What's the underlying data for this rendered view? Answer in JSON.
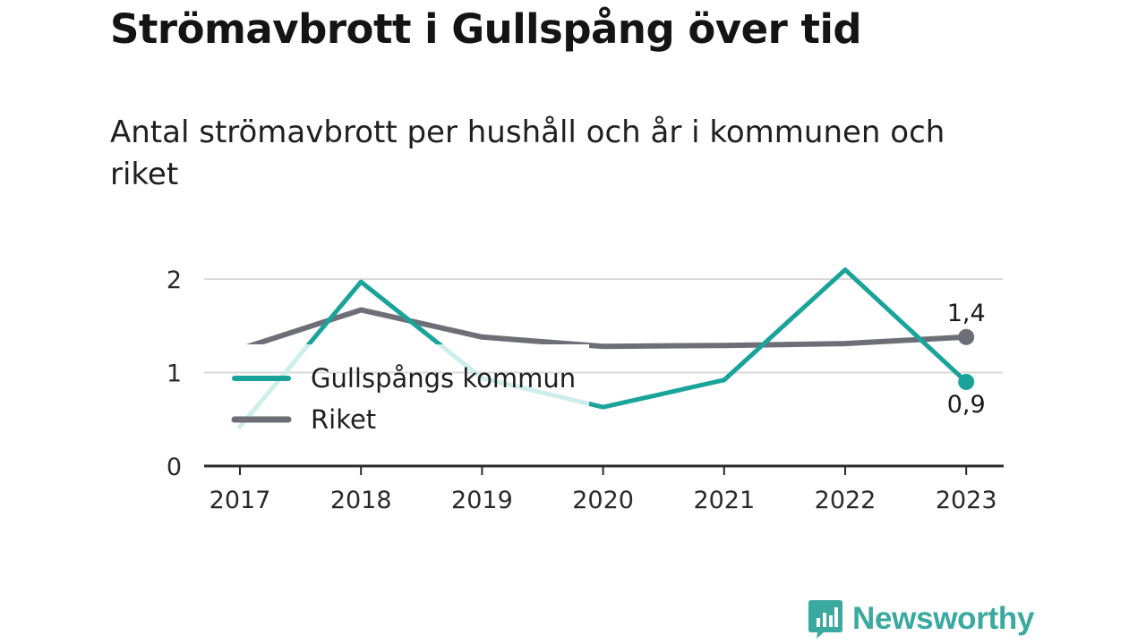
{
  "title": "Strömavbrott i Gullspång över tid",
  "subtitle": "Antal strömavbrott per hushåll och år i kommunen och riket",
  "brand": {
    "name": "Newsworthy",
    "icon": "newsworthy-logo-icon",
    "color": "#3aa99f"
  },
  "chart_data": {
    "type": "line",
    "x": [
      "2017",
      "2018",
      "2019",
      "2020",
      "2021",
      "2022",
      "2023"
    ],
    "y_ticks": [
      "0",
      "1",
      "2"
    ],
    "ylim": [
      0,
      2.2
    ],
    "grid": true,
    "legend_position": "middle-left",
    "series": [
      {
        "name": "Gullspångs kommun",
        "color": "#1aa39a",
        "values": [
          0.42,
          1.97,
          0.94,
          0.63,
          0.92,
          2.1,
          0.9
        ],
        "end_label": "0,9"
      },
      {
        "name": "Riket",
        "color": "#6e6e76",
        "values": [
          1.25,
          1.67,
          1.38,
          1.28,
          1.29,
          1.31,
          1.38
        ],
        "end_label": "1,4"
      }
    ]
  }
}
